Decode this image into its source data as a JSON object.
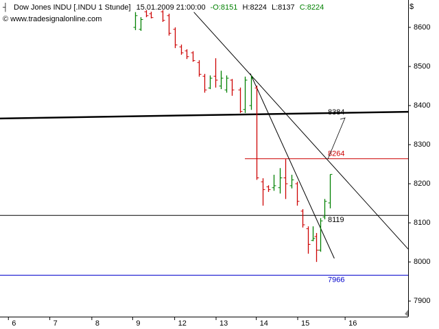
{
  "chart_data": {
    "type": "ohlc",
    "header": {
      "title": "Dow Jones INDU [.INDU  1 Stunde]",
      "datetime": "15.01.2009 21:00:00",
      "open": "-O:8151",
      "high": "H:8224",
      "low": "L:8137",
      "close": "C:8224"
    },
    "copyright": "© www.tradesignalonline.com",
    "currency": "$",
    "up_color": "#008000",
    "down_color": "#cc0000",
    "x": [
      22.5,
      23.4,
      24.3,
      25.1,
      27.1,
      28.1,
      29.1,
      30.2,
      31.1,
      32.1,
      33.1,
      34.1,
      35,
      35.9,
      36.8,
      37.7,
      38.6,
      40,
      40.8,
      41.8,
      42.7,
      43.8,
      44.7,
      45.6,
      46.6,
      47.5,
      48.6,
      49.5,
      50.4,
      51.3,
      52.1,
      52.7,
      53.4,
      54.1,
      55
    ],
    "open": [
      8600,
      8595,
      8640,
      8635,
      8640,
      8630,
      8595,
      8550,
      8540,
      8535,
      8510,
      8475,
      8445,
      8475,
      8450,
      8440,
      8465,
      8440,
      8390,
      8400,
      8445,
      8205,
      8192,
      8190,
      8190,
      8215,
      8195,
      8200,
      8130,
      8085,
      8055,
      8065,
      8030,
      8115,
      8151
    ],
    "high": [
      8639,
      8626,
      8644,
      8640,
      8644,
      8635,
      8600,
      8556,
      8544,
      8539,
      8516,
      8481,
      8477,
      8521,
      8489,
      8477,
      8468,
      8446,
      8474,
      8477,
      8451,
      8214,
      8196,
      8223,
      8240,
      8263,
      8223,
      8205,
      8135,
      8091,
      8091,
      8074,
      8112,
      8161,
      8224
    ],
    "low": [
      8593,
      8591,
      8626,
      8623,
      8614,
      8579,
      8547,
      8530,
      8519,
      8512,
      8474,
      8433,
      8442,
      8446,
      8442,
      8433,
      8425,
      8381,
      8381,
      8389,
      8210,
      8144,
      8179,
      8182,
      8175,
      8161,
      8188,
      8144,
      8088,
      8021,
      8053,
      8000,
      8026,
      8109,
      8137
    ],
    "close": [
      8630,
      8620,
      8630,
      8625,
      8618,
      8585,
      8555,
      8535,
      8525,
      8515,
      8480,
      8440,
      8470,
      8465,
      8470,
      8470,
      8440,
      8385,
      8465,
      8470,
      8215,
      8185,
      8185,
      8195,
      8215,
      8200,
      8210,
      8155,
      8095,
      8045,
      8060,
      8030,
      8105,
      8155,
      8224
    ],
    "xlim": [
      0,
      68
    ],
    "xticks": [
      {
        "value": 1.4,
        "label": "6"
      },
      {
        "value": 8.3,
        "label": "7"
      },
      {
        "value": 15.3,
        "label": "8"
      },
      {
        "value": 22.1,
        "label": "9"
      },
      {
        "value": 29.1,
        "label": "12"
      },
      {
        "value": 36,
        "label": "13"
      },
      {
        "value": 42.7,
        "label": "14"
      },
      {
        "value": 49.6,
        "label": "15"
      },
      {
        "value": 57.5,
        "label": "16"
      }
    ],
    "ylim": [
      7860,
      8670
    ],
    "yticks": [
      7900,
      8000,
      8100,
      8200,
      8300,
      8400,
      8500,
      8600
    ],
    "levels": [
      {
        "value": 8119,
        "color": "#000000",
        "start": 0
      },
      {
        "value": 8264,
        "color": "#cc0000",
        "start": 40.8
      },
      {
        "value": 7966,
        "color": "#0000cc",
        "start": 0
      }
    ],
    "trendlines": [
      {
        "x": [
          32.3,
          68
        ],
        "y": [
          8639,
          8033
        ],
        "width": 1
      },
      {
        "x": [
          41.7,
          55.7
        ],
        "y": [
          8482,
          8009
        ],
        "width": 1
      },
      {
        "x": [
          0,
          68
        ],
        "y": [
          8367,
          8384
        ],
        "width": 2.5
      }
    ],
    "trend_label": 8384
  }
}
